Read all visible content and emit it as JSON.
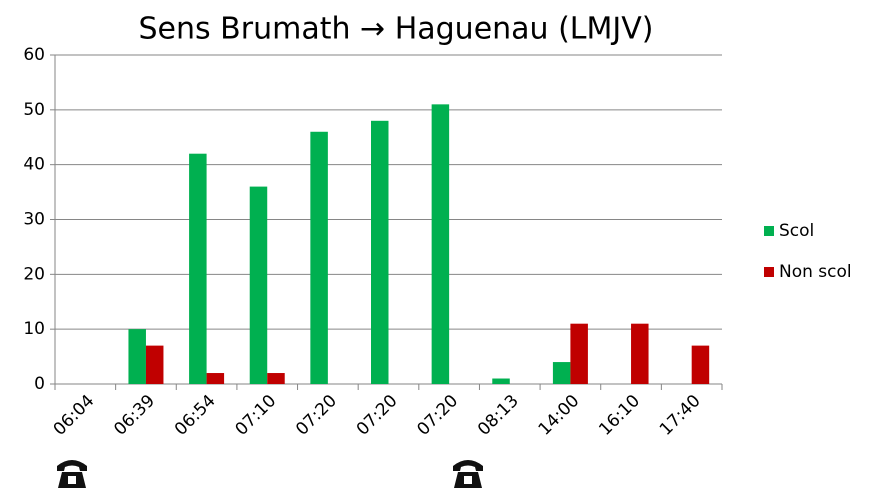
{
  "chart_data": {
    "type": "bar",
    "title": "Sens Brumath → Haguenau (LMJV)",
    "categories": [
      "06:04",
      "06:39",
      "06:54",
      "07:10",
      "07:20",
      "07:20",
      "07:20",
      "08:13",
      "14:00",
      "16:10",
      "17:40"
    ],
    "series": [
      {
        "name": "Scol",
        "color": "#00b050",
        "values": [
          0,
          10,
          42,
          36,
          46,
          48,
          51,
          1,
          4,
          0,
          0
        ]
      },
      {
        "name": "Non scol",
        "color": "#c00000",
        "values": [
          0,
          7,
          2,
          2,
          0,
          0,
          0,
          0,
          11,
          11,
          7
        ]
      }
    ],
    "ylim": [
      0,
      60
    ],
    "yticks": [
      0,
      10,
      20,
      30,
      40,
      50,
      60
    ],
    "grid": true,
    "legend": "right"
  }
}
